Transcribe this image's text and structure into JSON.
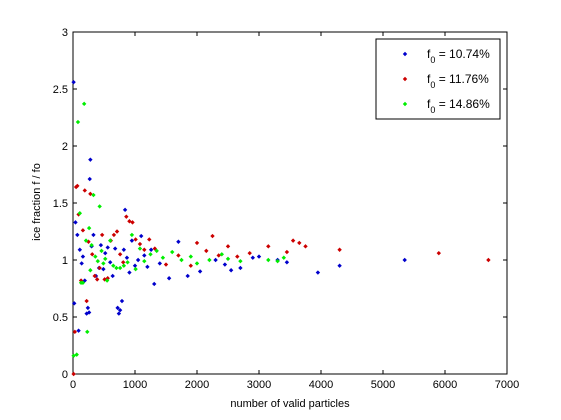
{
  "chart_data": {
    "type": "scatter",
    "title": "",
    "xlabel": "number of valid particles",
    "ylabel": "ice fraction  f / fo",
    "xlim": [
      0,
      7000
    ],
    "ylim": [
      0,
      3
    ],
    "xticks": [
      "0",
      "1000",
      "2000",
      "3000",
      "4000",
      "5000",
      "6000",
      "7000"
    ],
    "yticks": [
      "0",
      "0.5",
      "1",
      "1.5",
      "2",
      "2.5",
      "3"
    ],
    "grid": false,
    "legend_position": "top-right",
    "series": [
      {
        "name_main": "f",
        "name_sub": "0",
        "name_rest": " = 10.74%",
        "color": "#0000cc",
        "points": [
          [
            10,
            2.56
          ],
          [
            20,
            0.62
          ],
          [
            40,
            1.33
          ],
          [
            70,
            1.22
          ],
          [
            90,
            0.38
          ],
          [
            110,
            1.09
          ],
          [
            140,
            0.97
          ],
          [
            160,
            1.03
          ],
          [
            190,
            0.82
          ],
          [
            220,
            0.53
          ],
          [
            240,
            0.58
          ],
          [
            260,
            0.54
          ],
          [
            270,
            1.71
          ],
          [
            280,
            1.88
          ],
          [
            300,
            1.12
          ],
          [
            330,
            1.22
          ],
          [
            370,
            0.86
          ],
          [
            420,
            0.93
          ],
          [
            450,
            1.13
          ],
          [
            490,
            0.92
          ],
          [
            520,
            1.06
          ],
          [
            560,
            1.11
          ],
          [
            600,
            0.98
          ],
          [
            640,
            0.86
          ],
          [
            680,
            1.1
          ],
          [
            720,
            0.58
          ],
          [
            740,
            0.53
          ],
          [
            760,
            0.56
          ],
          [
            790,
            0.64
          ],
          [
            820,
            1.09
          ],
          [
            840,
            1.44
          ],
          [
            870,
            1.02
          ],
          [
            910,
            0.89
          ],
          [
            950,
            1.17
          ],
          [
            1000,
            0.95
          ],
          [
            1050,
            1.0
          ],
          [
            1100,
            1.21
          ],
          [
            1150,
            1.04
          ],
          [
            1200,
            0.94
          ],
          [
            1260,
            1.09
          ],
          [
            1310,
            0.79
          ],
          [
            1400,
            0.97
          ],
          [
            1550,
            0.84
          ],
          [
            1700,
            1.16
          ],
          [
            1850,
            0.86
          ],
          [
            2050,
            0.9
          ],
          [
            2300,
            1.0
          ],
          [
            2450,
            0.96
          ],
          [
            2550,
            0.91
          ],
          [
            2700,
            0.93
          ],
          [
            2900,
            1.02
          ],
          [
            3000,
            1.03
          ],
          [
            3300,
            1.0
          ],
          [
            3450,
            0.98
          ],
          [
            3950,
            0.89
          ],
          [
            4300,
            0.95
          ],
          [
            5350,
            1.0
          ]
        ]
      },
      {
        "name_main": "f",
        "name_sub": "0",
        "name_rest": " = 11.76%",
        "color": "#cc0000",
        "points": [
          [
            10,
            0.0
          ],
          [
            30,
            0.37
          ],
          [
            50,
            1.64
          ],
          [
            70,
            1.65
          ],
          [
            90,
            1.4
          ],
          [
            130,
            0.82
          ],
          [
            160,
            1.26
          ],
          [
            190,
            1.61
          ],
          [
            220,
            0.64
          ],
          [
            250,
            1.16
          ],
          [
            280,
            1.58
          ],
          [
            310,
            1.05
          ],
          [
            350,
            0.86
          ],
          [
            390,
            0.83
          ],
          [
            430,
            0.93
          ],
          [
            470,
            1.22
          ],
          [
            510,
            0.83
          ],
          [
            560,
            0.84
          ],
          [
            610,
            1.17
          ],
          [
            660,
            1.22
          ],
          [
            710,
            1.25
          ],
          [
            760,
            1.05
          ],
          [
            810,
            0.98
          ],
          [
            860,
            1.38
          ],
          [
            910,
            1.34
          ],
          [
            960,
            1.33
          ],
          [
            1010,
            1.18
          ],
          [
            1080,
            1.14
          ],
          [
            1150,
            1.09
          ],
          [
            1230,
            1.18
          ],
          [
            1320,
            1.1
          ],
          [
            1500,
            0.96
          ],
          [
            1700,
            1.04
          ],
          [
            1900,
            0.95
          ],
          [
            2000,
            1.15
          ],
          [
            2150,
            1.08
          ],
          [
            2250,
            1.21
          ],
          [
            2350,
            1.04
          ],
          [
            2500,
            1.12
          ],
          [
            2650,
            1.03
          ],
          [
            2850,
            1.06
          ],
          [
            3150,
            1.12
          ],
          [
            3450,
            1.07
          ],
          [
            3550,
            1.17
          ],
          [
            3650,
            1.15
          ],
          [
            3750,
            1.12
          ],
          [
            4300,
            1.09
          ],
          [
            5900,
            1.06
          ],
          [
            6700,
            1.0
          ]
        ]
      },
      {
        "name_main": "f",
        "name_sub": "0",
        "name_rest": " = 14.86%",
        "color": "#00ee00",
        "points": [
          [
            10,
            0.16
          ],
          [
            60,
            0.17
          ],
          [
            80,
            2.21
          ],
          [
            110,
            1.41
          ],
          [
            130,
            0.8
          ],
          [
            160,
            0.8
          ],
          [
            180,
            2.37
          ],
          [
            210,
            1.17
          ],
          [
            230,
            0.37
          ],
          [
            260,
            1.28
          ],
          [
            280,
            0.91
          ],
          [
            300,
            1.13
          ],
          [
            330,
            1.57
          ],
          [
            360,
            1.03
          ],
          [
            400,
            0.99
          ],
          [
            430,
            1.47
          ],
          [
            460,
            1.08
          ],
          [
            490,
            0.97
          ],
          [
            520,
            1.01
          ],
          [
            550,
            0.82
          ],
          [
            600,
            1.17
          ],
          [
            650,
            0.95
          ],
          [
            700,
            0.93
          ],
          [
            760,
            0.93
          ],
          [
            820,
            0.95
          ],
          [
            880,
            0.98
          ],
          [
            950,
            1.22
          ],
          [
            1010,
            0.92
          ],
          [
            1080,
            1.1
          ],
          [
            1150,
            0.99
          ],
          [
            1250,
            1.05
          ],
          [
            1350,
            1.08
          ],
          [
            1450,
            1.02
          ],
          [
            1600,
            1.07
          ],
          [
            1750,
            1.0
          ],
          [
            1900,
            1.03
          ],
          [
            2000,
            0.97
          ],
          [
            2200,
            1.0
          ],
          [
            2400,
            1.05
          ],
          [
            2500,
            1.01
          ],
          [
            2700,
            0.99
          ],
          [
            3150,
            1.0
          ],
          [
            3300,
            0.99
          ],
          [
            3400,
            1.02
          ]
        ]
      }
    ]
  }
}
